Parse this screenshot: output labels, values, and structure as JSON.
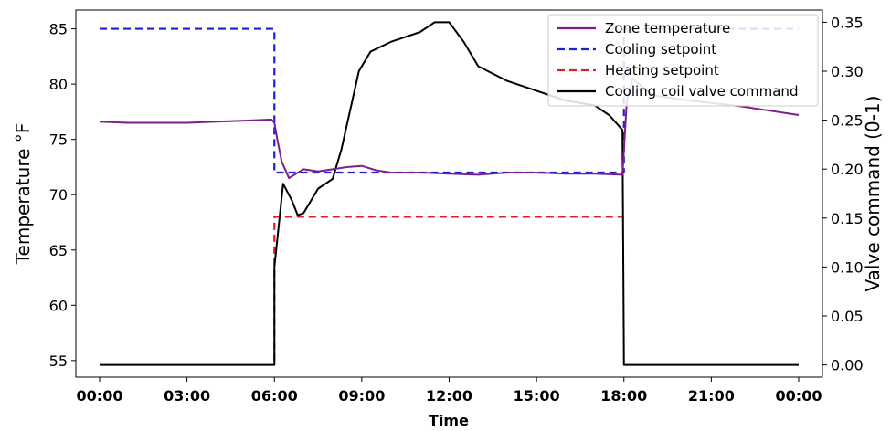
{
  "chart_data": {
    "type": "line",
    "xlabel": "Time",
    "ylabel_left": "Temperature °F",
    "ylabel_right": "Valve command (0-1)",
    "x_ticks": [
      "00:00",
      "03:00",
      "06:00",
      "09:00",
      "12:00",
      "15:00",
      "18:00",
      "21:00",
      "00:00"
    ],
    "x_range_hours": [
      0,
      24
    ],
    "y_left_ticks": [
      "55",
      "60",
      "65",
      "70",
      "75",
      "80",
      "85"
    ],
    "y_left_range": [
      53.5,
      86.7
    ],
    "y_right_ticks": [
      "0.00",
      "0.05",
      "0.10",
      "0.15",
      "0.20",
      "0.25",
      "0.30",
      "0.35"
    ],
    "y_right_range": [
      -0.0125,
      0.3625
    ],
    "legend_position": "top-right",
    "grid": false,
    "series": [
      {
        "name": "Zone temperature",
        "axis": "left",
        "style": "solid",
        "color": "#7b1d8a",
        "x": [
          0,
          1,
          2,
          3,
          4,
          5,
          5.9,
          6.0,
          6.1,
          6.25,
          6.5,
          7.0,
          7.5,
          8.0,
          8.5,
          9.0,
          9.5,
          10,
          11,
          12,
          13,
          14,
          15,
          16,
          17,
          17.95,
          18.0,
          18.1,
          18.3,
          18.6,
          19,
          20,
          21,
          22,
          23,
          24
        ],
        "y": [
          76.6,
          76.5,
          76.5,
          76.5,
          76.6,
          76.7,
          76.8,
          76.5,
          75.0,
          73.0,
          71.5,
          72.3,
          72.1,
          72.3,
          72.5,
          72.6,
          72.2,
          72.0,
          72.0,
          71.9,
          71.8,
          72.0,
          72.0,
          71.9,
          71.9,
          71.8,
          74.0,
          78.5,
          80.5,
          79.8,
          79.0,
          78.6,
          78.3,
          78.0,
          77.6,
          77.2
        ]
      },
      {
        "name": "Cooling setpoint",
        "axis": "left",
        "style": "dashed",
        "color": "#1f1fd6",
        "x": [
          0,
          6,
          6,
          18,
          18,
          24
        ],
        "y": [
          85,
          85,
          72,
          72,
          85,
          85
        ]
      },
      {
        "name": "Heating setpoint",
        "axis": "left",
        "style": "dashed",
        "color": "#e02020",
        "x": [
          6,
          6,
          18
        ],
        "y": [
          55,
          68,
          68
        ]
      },
      {
        "name": "Cooling coil valve command",
        "axis": "right",
        "style": "solid",
        "color": "#000000",
        "x": [
          0,
          6.0,
          6.0,
          6.3,
          6.6,
          6.8,
          7.0,
          7.2,
          7.5,
          8.0,
          8.3,
          8.6,
          8.9,
          9.3,
          10,
          11,
          11.5,
          12.0,
          12.5,
          13,
          14,
          15,
          16,
          17,
          17.5,
          17.95,
          18.0,
          24
        ],
        "y": [
          0.0,
          0.0,
          0.1,
          0.185,
          0.168,
          0.153,
          0.155,
          0.165,
          0.18,
          0.19,
          0.22,
          0.26,
          0.3,
          0.32,
          0.33,
          0.34,
          0.35,
          0.35,
          0.33,
          0.305,
          0.29,
          0.28,
          0.27,
          0.265,
          0.255,
          0.24,
          0.0,
          0.0
        ]
      }
    ]
  }
}
